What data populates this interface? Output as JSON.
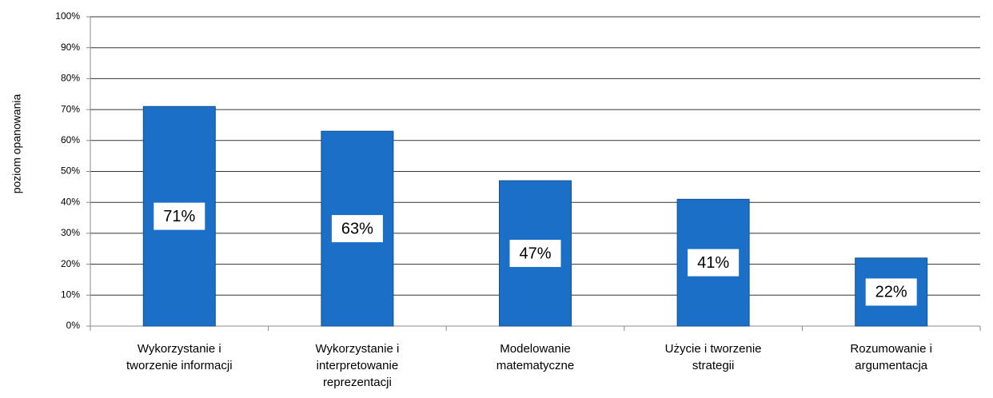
{
  "chart_data": {
    "type": "bar",
    "y_label": "poziom opanowania",
    "categories": [
      "Wykorzystanie i\ntworzenie informacji",
      "Wykorzystanie i\ninterpretowanie\nreprezentacji",
      "Modelowanie\nmatematyczne",
      "Użycie i tworzenie\nstrategii",
      "Rozumowanie i\nargumentacja"
    ],
    "values": [
      71,
      63,
      47,
      41,
      22
    ],
    "value_labels": [
      "71%",
      "63%",
      "47%",
      "41%",
      "22%"
    ],
    "color": "#1b6fc6",
    "ylim": [
      0,
      100
    ],
    "yticks": [
      {
        "value": 0,
        "label": "0%"
      },
      {
        "value": 10,
        "label": "10%"
      },
      {
        "value": 20,
        "label": "20%"
      },
      {
        "value": 30,
        "label": "30%"
      },
      {
        "value": 40,
        "label": "40%"
      },
      {
        "value": 50,
        "label": "50%"
      },
      {
        "value": 60,
        "label": "60%"
      },
      {
        "value": 70,
        "label": "70%"
      },
      {
        "value": 80,
        "label": "80%"
      },
      {
        "value": 90,
        "label": "90%"
      },
      {
        "value": 100,
        "label": "100%"
      }
    ],
    "grid": true
  }
}
